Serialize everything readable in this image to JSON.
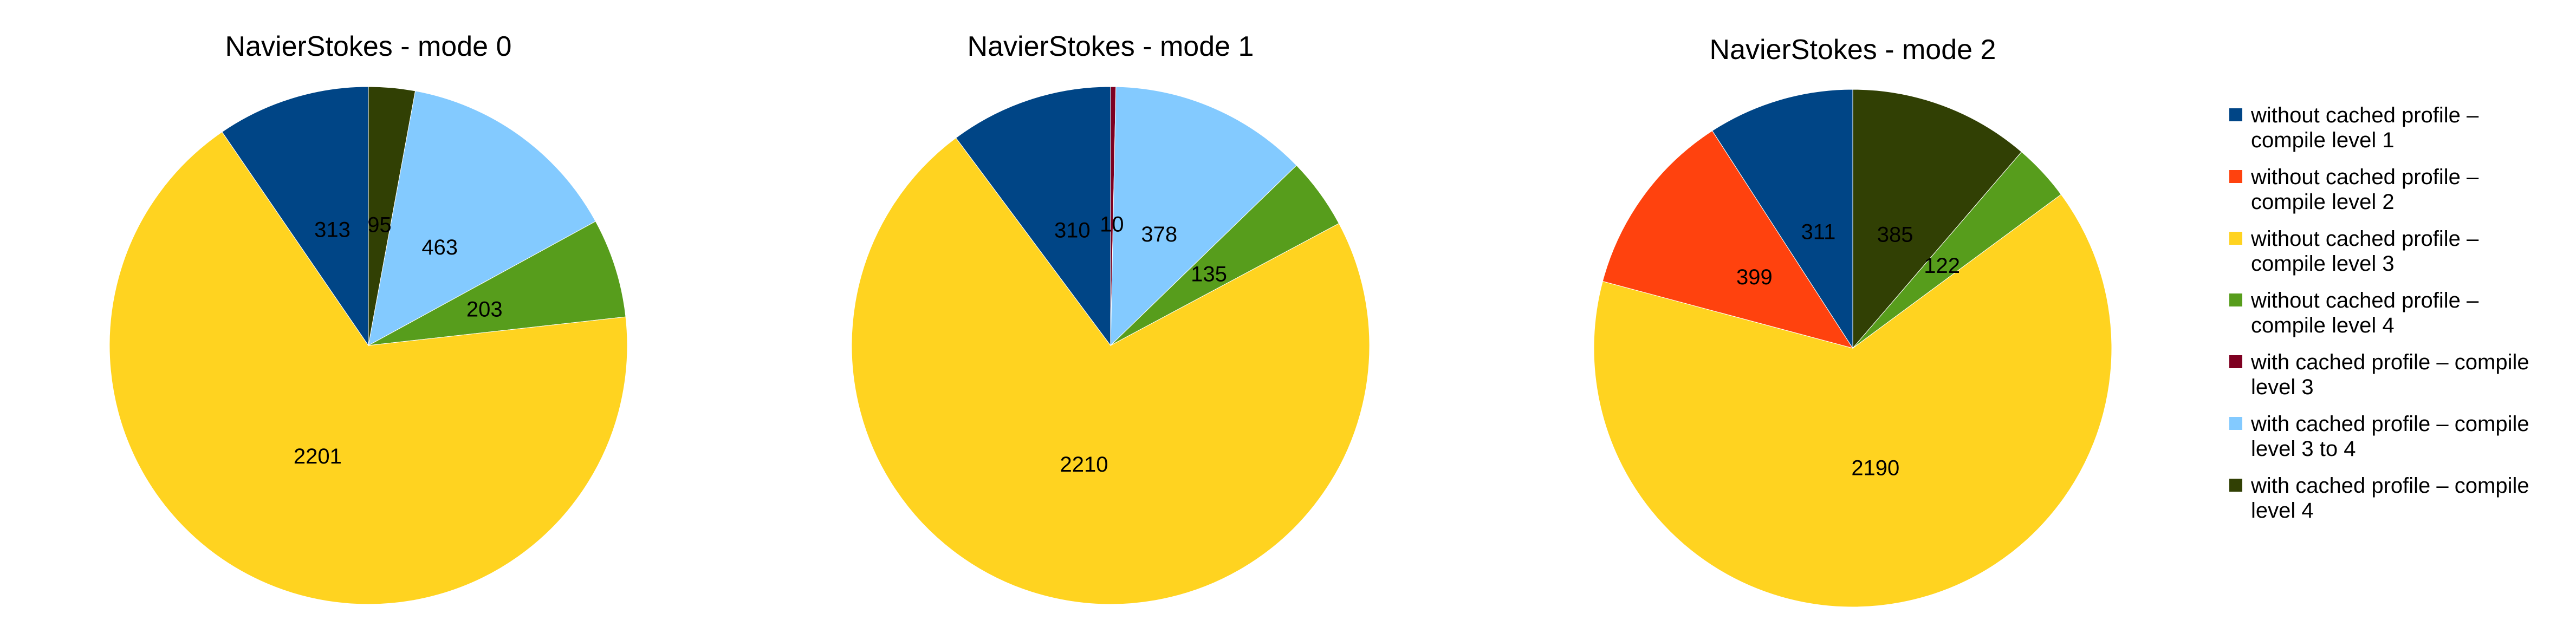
{
  "chart_data": [
    {
      "type": "pie",
      "title": "NavierStokes - mode 0",
      "series": [
        {
          "name": "with cached profile – compile level 4",
          "value": 95
        },
        {
          "name": "with cached profile – compile level 3 to 4",
          "value": 463
        },
        {
          "name": "without cached profile – compile level 4",
          "value": 203
        },
        {
          "name": "without cached profile – compile level 3",
          "value": 2201
        },
        {
          "name": "without cached profile – compile level 1",
          "value": 313
        }
      ]
    },
    {
      "type": "pie",
      "title": "NavierStokes - mode 1",
      "series": [
        {
          "name": "with cached profile – compile level 3",
          "value": 10
        },
        {
          "name": "with cached profile – compile level 3 to 4",
          "value": 378
        },
        {
          "name": "without cached profile – compile level 4",
          "value": 135
        },
        {
          "name": "without cached profile – compile level 3",
          "value": 2210
        },
        {
          "name": "without cached profile – compile level 1",
          "value": 310
        }
      ]
    },
    {
      "type": "pie",
      "title": "NavierStokes - mode 2",
      "series": [
        {
          "name": "with cached profile – compile level 4",
          "value": 385
        },
        {
          "name": "without cached profile – compile level 4",
          "value": 122
        },
        {
          "name": "without cached profile – compile level 3",
          "value": 2190
        },
        {
          "name": "without cached profile – compile level 2",
          "value": 399
        },
        {
          "name": "without cached profile – compile level 1",
          "value": 311
        }
      ]
    }
  ],
  "legend": {
    "placement": "right",
    "entries": [
      {
        "name": "without cached profile – compile level 1",
        "lines": [
          "without cached profile –",
          "compile level 1"
        ],
        "color": "#004586"
      },
      {
        "name": "without cached profile – compile level 2",
        "lines": [
          "without cached profile –",
          "compile level 2"
        ],
        "color": "#ff420e"
      },
      {
        "name": "without cached profile – compile level 3",
        "lines": [
          "without cached profile –",
          "compile level 3"
        ],
        "color": "#ffd320"
      },
      {
        "name": "without cached profile – compile level 4",
        "lines": [
          "without cached profile –",
          "compile level 4"
        ],
        "color": "#579d1c"
      },
      {
        "name": "with cached profile – compile level 3",
        "lines": [
          "with cached profile – compile",
          "level 3"
        ],
        "color": "#7e0021"
      },
      {
        "name": "with cached profile – compile level 3 to 4",
        "lines": [
          "with cached profile – compile",
          "level 3 to 4"
        ],
        "color": "#83caff"
      },
      {
        "name": "with cached profile – compile level 4",
        "lines": [
          "with cached profile – compile",
          "level 4"
        ],
        "color": "#314004"
      }
    ]
  }
}
